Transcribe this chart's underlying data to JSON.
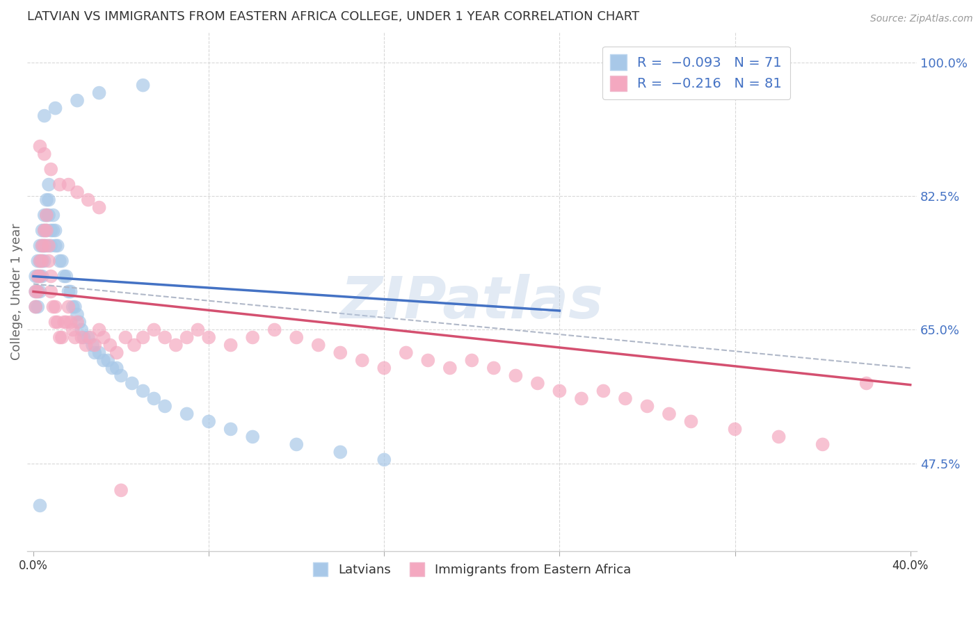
{
  "title": "LATVIAN VS IMMIGRANTS FROM EASTERN AFRICA COLLEGE, UNDER 1 YEAR CORRELATION CHART",
  "source": "Source: ZipAtlas.com",
  "ylabel": "College, Under 1 year",
  "watermark": "ZIPatlas",
  "xlim": [
    -0.003,
    0.403
  ],
  "ylim": [
    0.36,
    1.04
  ],
  "xtick_positions": [
    0.0,
    0.08,
    0.16,
    0.24,
    0.32,
    0.4
  ],
  "xtick_labels": [
    "0.0%",
    "",
    "",
    "",
    "",
    "40.0%"
  ],
  "yticks_right": [
    1.0,
    0.825,
    0.65,
    0.475
  ],
  "ytick_right_labels": [
    "100.0%",
    "82.5%",
    "65.0%",
    "47.5%"
  ],
  "legend_label1": "Latvians",
  "legend_label2": "Immigrants from Eastern Africa",
  "blue_dot_color": "#a8c8e8",
  "pink_dot_color": "#f4a8c0",
  "blue_line_color": "#4472c4",
  "pink_line_color": "#d45070",
  "dashed_line_color": "#b0b8c8",
  "bg_color": "#ffffff",
  "grid_color": "#d8d8d8",
  "title_color": "#333333",
  "axis_color": "#666666",
  "right_axis_color": "#4472c4",
  "legend_r_color": "#4472c4",
  "latvian_x": [
    0.001,
    0.001,
    0.001,
    0.002,
    0.002,
    0.002,
    0.002,
    0.003,
    0.003,
    0.003,
    0.003,
    0.004,
    0.004,
    0.004,
    0.004,
    0.005,
    0.005,
    0.005,
    0.005,
    0.006,
    0.006,
    0.006,
    0.006,
    0.007,
    0.007,
    0.007,
    0.008,
    0.008,
    0.009,
    0.009,
    0.01,
    0.01,
    0.011,
    0.012,
    0.013,
    0.014,
    0.015,
    0.016,
    0.017,
    0.018,
    0.019,
    0.02,
    0.021,
    0.022,
    0.023,
    0.025,
    0.027,
    0.028,
    0.03,
    0.032,
    0.034,
    0.036,
    0.038,
    0.04,
    0.045,
    0.05,
    0.055,
    0.06,
    0.07,
    0.08,
    0.09,
    0.1,
    0.12,
    0.14,
    0.16,
    0.05,
    0.03,
    0.02,
    0.01,
    0.005,
    0.003
  ],
  "latvian_y": [
    0.72,
    0.7,
    0.68,
    0.74,
    0.72,
    0.7,
    0.68,
    0.76,
    0.74,
    0.72,
    0.7,
    0.78,
    0.76,
    0.74,
    0.72,
    0.8,
    0.78,
    0.76,
    0.74,
    0.82,
    0.8,
    0.78,
    0.76,
    0.84,
    0.82,
    0.8,
    0.78,
    0.76,
    0.8,
    0.78,
    0.78,
    0.76,
    0.76,
    0.74,
    0.74,
    0.72,
    0.72,
    0.7,
    0.7,
    0.68,
    0.68,
    0.67,
    0.66,
    0.65,
    0.64,
    0.64,
    0.63,
    0.62,
    0.62,
    0.61,
    0.61,
    0.6,
    0.6,
    0.59,
    0.58,
    0.57,
    0.56,
    0.55,
    0.54,
    0.53,
    0.52,
    0.51,
    0.5,
    0.49,
    0.48,
    0.97,
    0.96,
    0.95,
    0.94,
    0.93,
    0.42
  ],
  "immigrant_x": [
    0.001,
    0.001,
    0.002,
    0.002,
    0.003,
    0.003,
    0.004,
    0.004,
    0.005,
    0.005,
    0.006,
    0.006,
    0.007,
    0.007,
    0.008,
    0.008,
    0.009,
    0.01,
    0.01,
    0.011,
    0.012,
    0.013,
    0.014,
    0.015,
    0.016,
    0.017,
    0.018,
    0.019,
    0.02,
    0.022,
    0.024,
    0.026,
    0.028,
    0.03,
    0.032,
    0.035,
    0.038,
    0.042,
    0.046,
    0.05,
    0.055,
    0.06,
    0.065,
    0.07,
    0.075,
    0.08,
    0.09,
    0.1,
    0.11,
    0.12,
    0.13,
    0.14,
    0.15,
    0.16,
    0.17,
    0.18,
    0.19,
    0.2,
    0.21,
    0.22,
    0.23,
    0.24,
    0.25,
    0.26,
    0.27,
    0.28,
    0.29,
    0.3,
    0.32,
    0.34,
    0.36,
    0.38,
    0.003,
    0.005,
    0.008,
    0.012,
    0.016,
    0.02,
    0.025,
    0.03,
    0.04
  ],
  "immigrant_y": [
    0.7,
    0.68,
    0.72,
    0.7,
    0.74,
    0.72,
    0.76,
    0.74,
    0.78,
    0.76,
    0.8,
    0.78,
    0.76,
    0.74,
    0.72,
    0.7,
    0.68,
    0.68,
    0.66,
    0.66,
    0.64,
    0.64,
    0.66,
    0.66,
    0.68,
    0.66,
    0.65,
    0.64,
    0.66,
    0.64,
    0.63,
    0.64,
    0.63,
    0.65,
    0.64,
    0.63,
    0.62,
    0.64,
    0.63,
    0.64,
    0.65,
    0.64,
    0.63,
    0.64,
    0.65,
    0.64,
    0.63,
    0.64,
    0.65,
    0.64,
    0.63,
    0.62,
    0.61,
    0.6,
    0.62,
    0.61,
    0.6,
    0.61,
    0.6,
    0.59,
    0.58,
    0.57,
    0.56,
    0.57,
    0.56,
    0.55,
    0.54,
    0.53,
    0.52,
    0.51,
    0.5,
    0.58,
    0.89,
    0.88,
    0.86,
    0.84,
    0.84,
    0.83,
    0.82,
    0.81,
    0.44
  ],
  "blue_line_x0": 0.0,
  "blue_line_y0": 0.72,
  "blue_line_x1": 0.24,
  "blue_line_y1": 0.675,
  "pink_line_x0": 0.0,
  "pink_line_y0": 0.7,
  "pink_line_x1": 0.4,
  "pink_line_y1": 0.578,
  "dash_line_x0": 0.0,
  "dash_line_y0": 0.71,
  "dash_line_x1": 0.4,
  "dash_line_y1": 0.6
}
